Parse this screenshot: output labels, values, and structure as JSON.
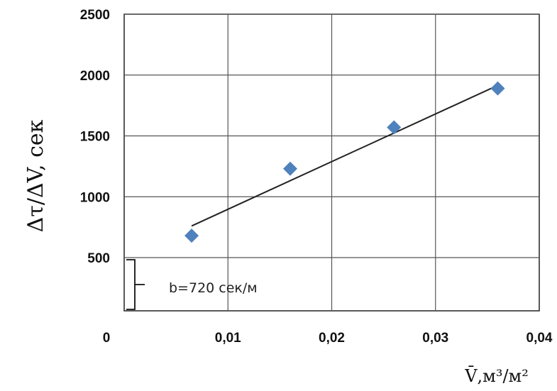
{
  "chart_data": {
    "type": "scatter",
    "title": "",
    "ylabel": "Δτ/ΔV, сек",
    "xlabel": "V̄,м³/м²",
    "x_ticks": [
      "0",
      "0,01",
      "0,02",
      "0,03",
      "0,04"
    ],
    "y_ticks": [
      "500",
      "1000",
      "1500",
      "2000",
      "2500"
    ],
    "xlim": [
      0,
      0.04
    ],
    "ylim": [
      500,
      2500
    ],
    "grid": true,
    "series": [
      {
        "x": [
          0.0065,
          0.016,
          0.026,
          0.036
        ],
        "y": [
          680,
          1230,
          1570,
          1890
        ],
        "color": "#4F81BD",
        "marker": "diamond"
      }
    ],
    "trendline": {
      "x": [
        0.0065,
        0.036
      ],
      "y": [
        760,
        1915
      ],
      "color": "#222222"
    },
    "annotation": {
      "text": "b=720 сек/м",
      "bracket_from": 0,
      "bracket_to": 500
    }
  }
}
